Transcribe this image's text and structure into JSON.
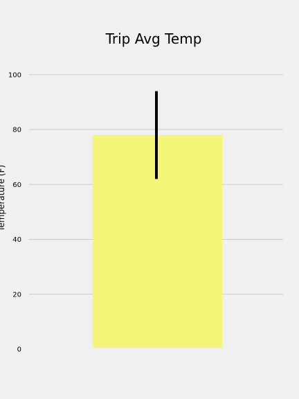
{
  "chart_data": {
    "type": "bar",
    "title": "Trip Avg Temp",
    "xlabel": "",
    "ylabel": "Temperature (F)",
    "categories": [
      ""
    ],
    "values": [
      78
    ],
    "error_range": [
      62,
      94
    ],
    "ylim": [
      0,
      105
    ],
    "yticks": [
      0,
      20,
      40,
      60,
      80,
      100
    ],
    "grid": "horizontal",
    "legend": "none",
    "colors": {
      "bar": "#f5f57a",
      "error_bar": "#000000",
      "grid": "#cbcbcb",
      "background": "#f0f0f0"
    }
  }
}
